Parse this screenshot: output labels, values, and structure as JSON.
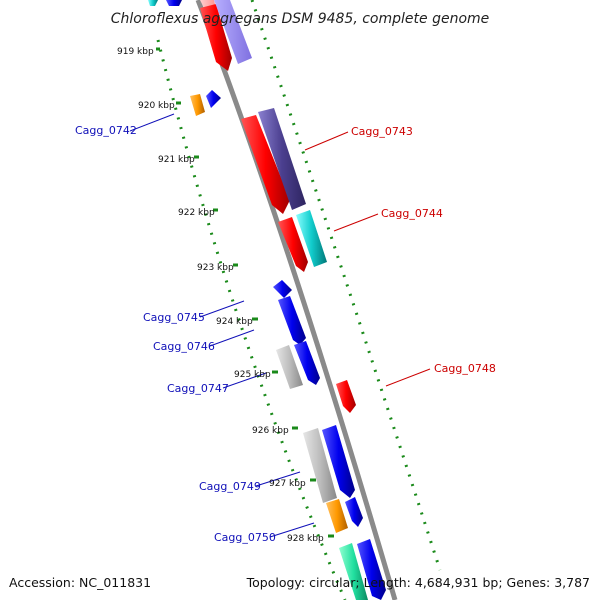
{
  "title": "Chloroflexus aggregans DSM 9485, complete genome",
  "footer": {
    "accession": "Accession: NC_011831",
    "summary": "Topology: circular; Length: 4,684,931 bp; Genes: 3,787"
  },
  "colors": {
    "backbone": "#8a8a8a",
    "tick": "#1a8a1a",
    "label_blue": "#1010b8",
    "label_red": "#cc0000"
  },
  "kbp_labels": [
    "919 kbp",
    "920 kbp",
    "921 kbp",
    "922 kbp",
    "923 kbp",
    "924 kbp",
    "925 kbp",
    "926 kbp",
    "927 kbp",
    "928 kbp"
  ],
  "gene_labels": [
    {
      "text": "Cagg_0742",
      "color": "blue"
    },
    {
      "text": "Cagg_0743",
      "color": "red"
    },
    {
      "text": "Cagg_0744",
      "color": "red"
    },
    {
      "text": "Cagg_0745",
      "color": "blue"
    },
    {
      "text": "Cagg_0746",
      "color": "blue"
    },
    {
      "text": "Cagg_0747",
      "color": "blue"
    },
    {
      "text": "Cagg_0748",
      "color": "red"
    },
    {
      "text": "Cagg_0749",
      "color": "blue"
    },
    {
      "text": "Cagg_0750",
      "color": "blue"
    }
  ]
}
